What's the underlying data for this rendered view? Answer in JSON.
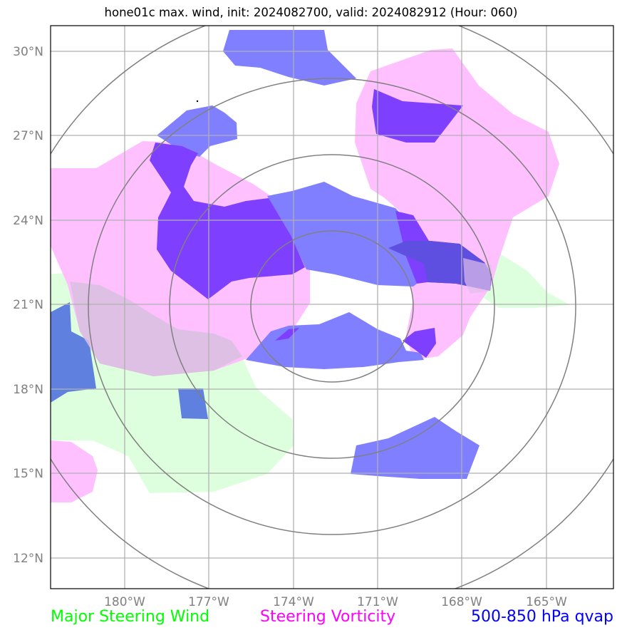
{
  "title": "hone01c max. wind, init: 2024082700, valid: 2024082912 (Hour: 060)",
  "lat_ticks": [
    "30°N",
    "27°N",
    "24°N",
    "21°N",
    "18°N",
    "15°N",
    "12°N"
  ],
  "lon_ticks": [
    "180°W",
    "177°W",
    "174°W",
    "171°W",
    "168°W",
    "165°W"
  ],
  "legend": {
    "wind": {
      "label": "Major Steering Wind",
      "color": "#00ff00"
    },
    "vorticity": {
      "label": "Steering Vorticity",
      "color": "#ff00ff"
    },
    "qvap": {
      "label": "500-850 hPa qvap",
      "color": "#0000ff"
    }
  },
  "colors": {
    "wind_fill": "#ddffdd",
    "vorticity_fill": "#ffbbff",
    "qvap_fill": "#7f7fff",
    "qvap_dark_fill": "#7f3fff",
    "overlap_fill": "#6080e0",
    "rings": "#808080",
    "grid": "#b0b0b0"
  }
}
